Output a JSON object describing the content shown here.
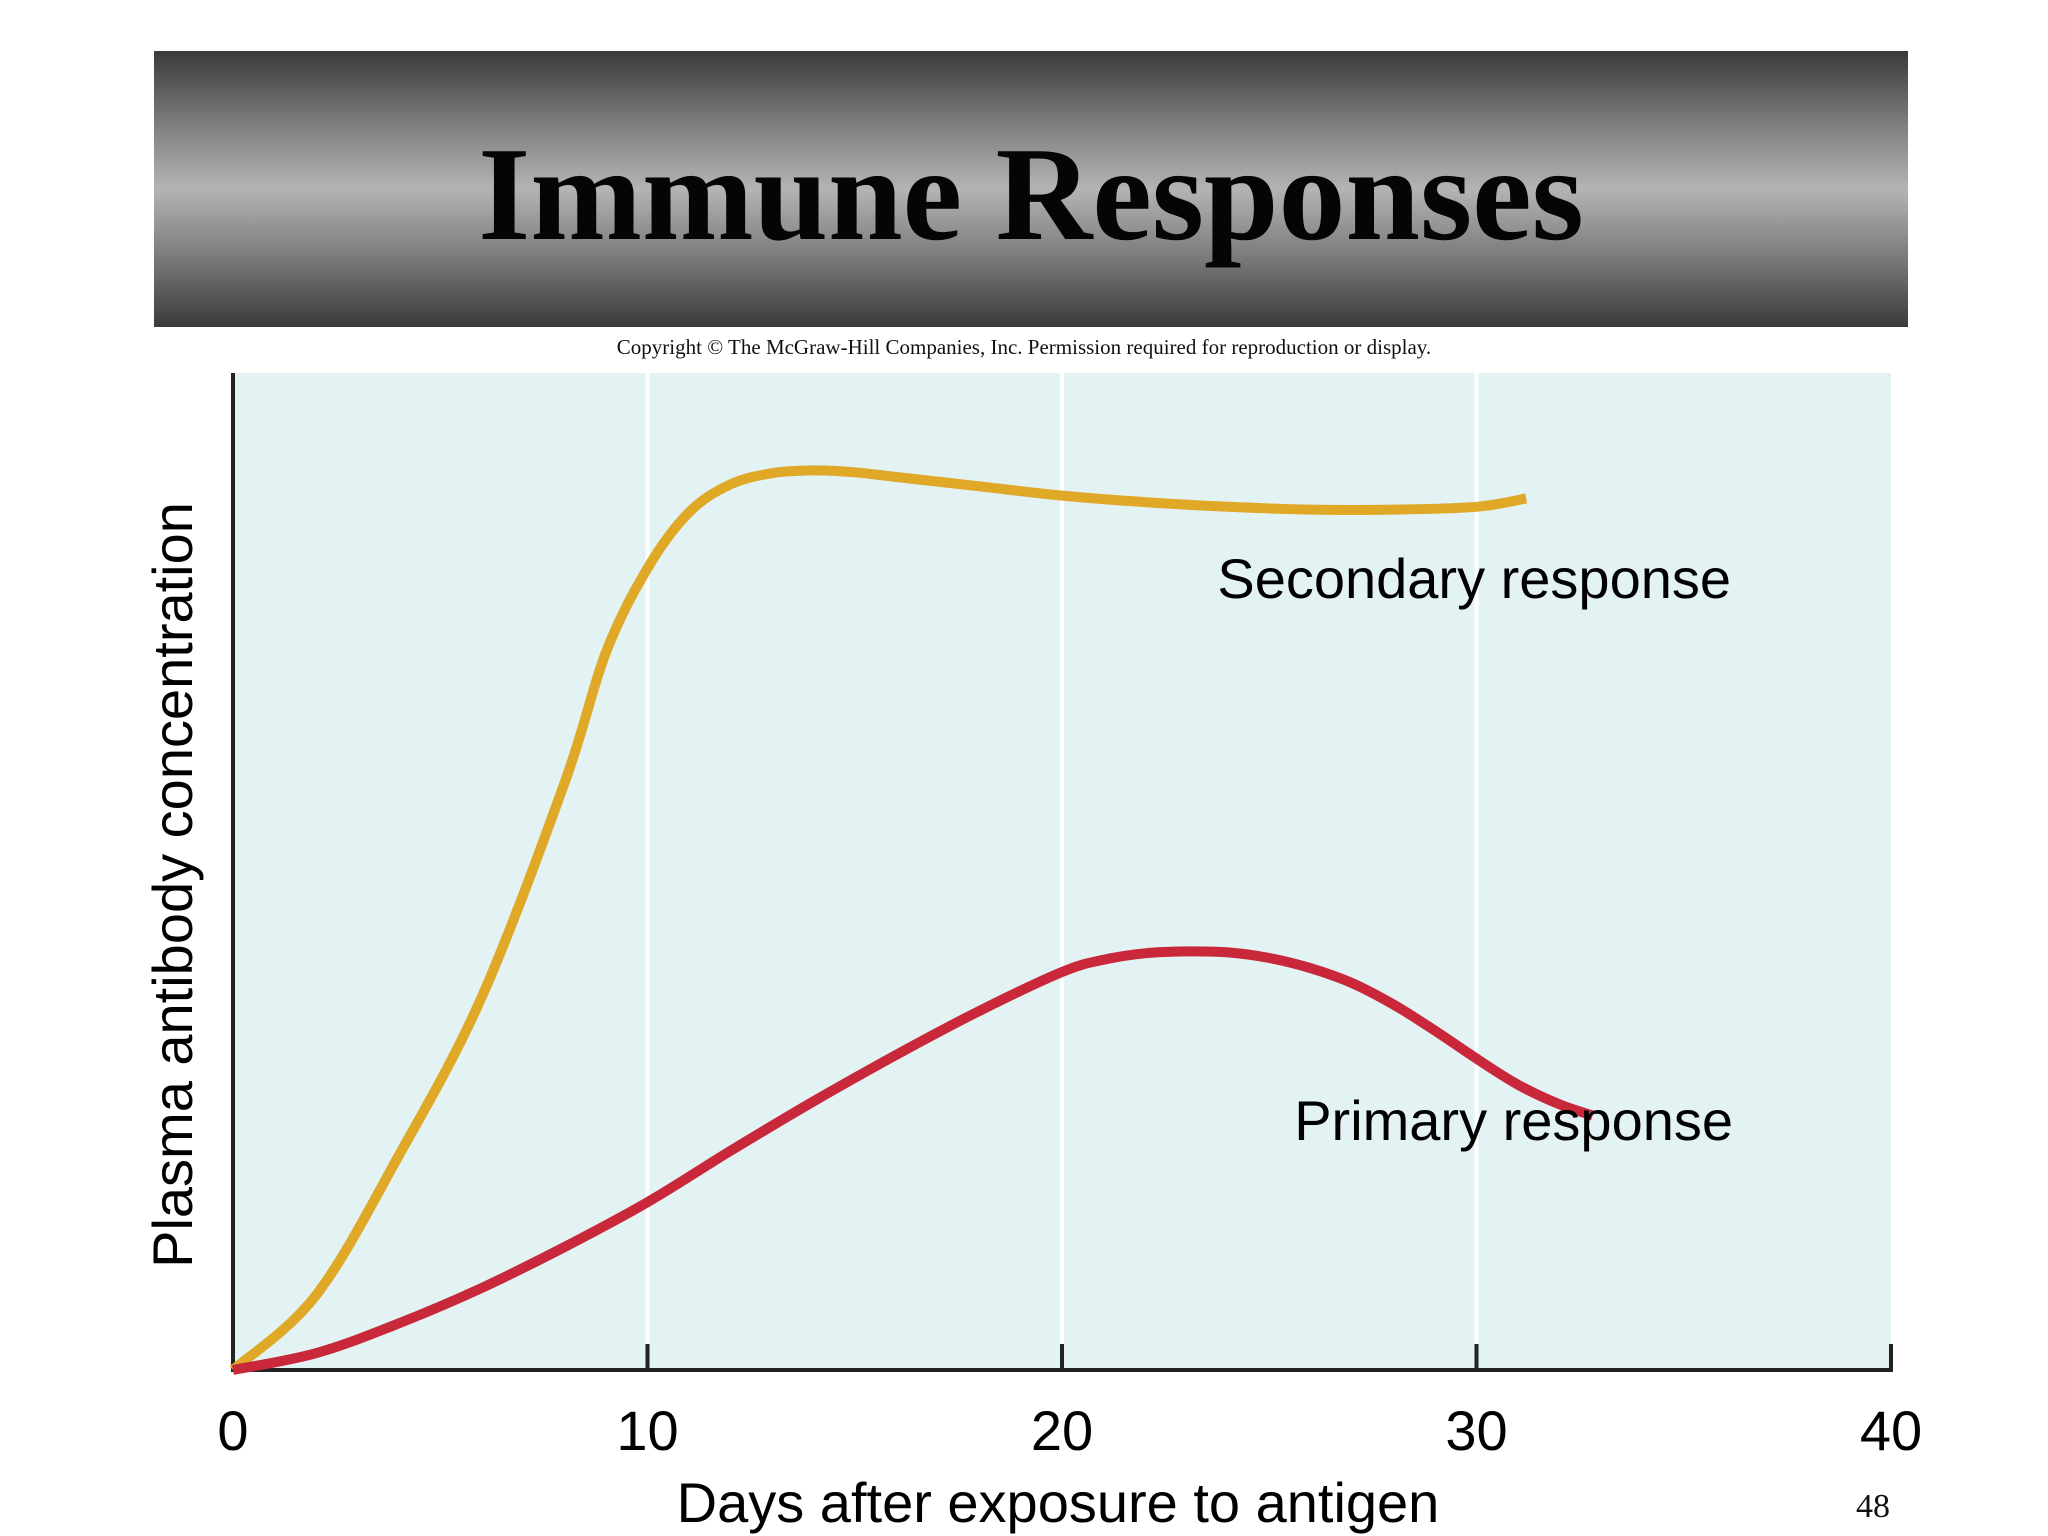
{
  "slide": {
    "title": "Immune Responses",
    "copyright": "Copyright © The McGraw-Hill Companies, Inc. Permission required for reproduction or display.",
    "page_number": "48"
  },
  "colors": {
    "plot_background": "#e3f2f3",
    "secondary": "#dfa827",
    "primary": "#c8283a",
    "axis": "#222222",
    "grid": "#ffffff"
  },
  "chart_data": {
    "type": "line",
    "xlabel": "Days after exposure to antigen",
    "ylabel": "Plasma antibody concentration",
    "xlim": [
      0,
      40
    ],
    "ylim": [
      0,
      100
    ],
    "xticks": [
      0,
      10,
      20,
      30,
      40
    ],
    "xtick_labels": [
      "0",
      "10",
      "20",
      "30",
      "40"
    ],
    "grid": "vertical gridlines at 10, 20, 30",
    "series": [
      {
        "name": "Secondary response",
        "color": "#dfa827",
        "x": [
          0,
          2,
          4,
          6,
          8,
          9,
          10,
          11,
          12,
          13,
          14,
          15,
          16,
          18,
          20,
          22,
          24,
          26,
          28,
          30,
          31.2
        ],
        "y": [
          0,
          8,
          23,
          40,
          63,
          77,
          86,
          92,
          95,
          96.2,
          96.5,
          96.3,
          95.8,
          94.8,
          93.8,
          93.1,
          92.6,
          92.3,
          92.3,
          92.6,
          93.5
        ]
      },
      {
        "name": "Primary response",
        "color": "#c8283a",
        "x": [
          0,
          2,
          4,
          6,
          8,
          10,
          12,
          14,
          16,
          18,
          20,
          21,
          22,
          23,
          24,
          25,
          26,
          27,
          28,
          29,
          30,
          31,
          32,
          32.8
        ],
        "y": [
          0,
          1.8,
          5,
          8.8,
          13.2,
          18,
          23.5,
          28.8,
          33.8,
          38.5,
          42.7,
          44,
          44.7,
          44.9,
          44.8,
          44.2,
          43.1,
          41.5,
          39.2,
          36.4,
          33.4,
          30.6,
          28.5,
          27.3
        ]
      }
    ]
  }
}
